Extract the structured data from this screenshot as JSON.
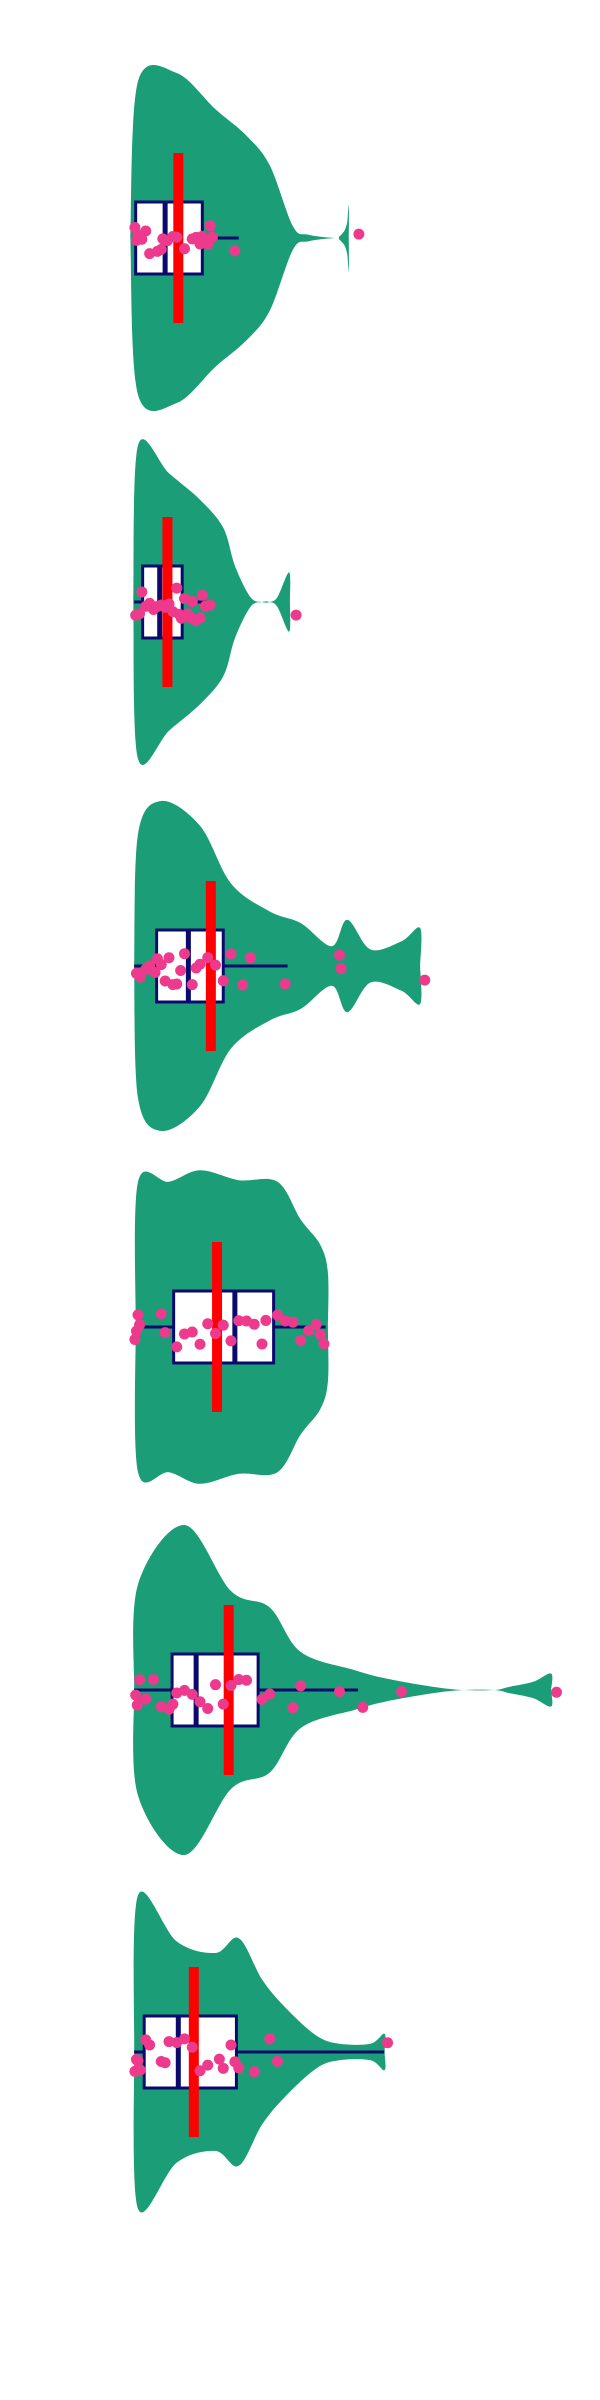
{
  "chart_data": {
    "type": "violin",
    "orientation": "horizontal",
    "title": "",
    "xlabel": "",
    "ylabel": "",
    "xlim": [
      0,
      72
    ],
    "grid": false,
    "colors": {
      "violin_fill": "#1b9e77",
      "box_stroke": "#0a0a6e",
      "box_fill": "#ffffff",
      "mean_bar": "#ff0000",
      "points": "#ee3a8c"
    },
    "series": [
      {
        "shape": [
          [
            -1,
            0
          ],
          [
            0,
            0.95
          ],
          [
            5,
            1
          ],
          [
            10,
            0.78
          ],
          [
            14,
            0.62
          ],
          [
            17,
            0.44
          ],
          [
            20,
            0.07
          ],
          [
            22,
            0.02
          ],
          [
            25.5,
            0
          ],
          [
            26,
            0.01
          ],
          [
            26.4,
            0.03
          ],
          [
            26.7,
            0.05
          ],
          [
            27,
            0.1
          ],
          [
            27.2,
            0.2
          ],
          [
            27.2,
            0
          ]
        ],
        "box": {
          "min": -0.5,
          "q1": -0.3,
          "median": 3.5,
          "q3": 8.3,
          "max": 13
        },
        "mean": 5.2,
        "points": [
          -0.4,
          -0.2,
          0,
          0.5,
          1,
          1.5,
          2.5,
          3,
          3.2,
          3.8,
          4.5,
          5,
          6,
          7,
          7.5,
          8,
          8.3,
          9,
          9.3,
          9.6,
          12.5,
          28.5
        ]
      },
      {
        "shape": [
          [
            -0.6,
            0
          ],
          [
            0,
            0.95
          ],
          [
            4,
            0.78
          ],
          [
            8,
            0.62
          ],
          [
            11,
            0.45
          ],
          [
            12.5,
            0.22
          ],
          [
            14.5,
            0.03
          ],
          [
            16,
            0
          ],
          [
            17,
            0
          ],
          [
            18,
            0.03
          ],
          [
            19.5,
            0.18
          ],
          [
            19.6,
            0
          ]
        ],
        "box": {
          "min": -0.5,
          "q1": 0.6,
          "median": 2.8,
          "q3": 5.7,
          "max": 9.3
        },
        "mean": 3.8,
        "points": [
          -0.3,
          -0.1,
          0.2,
          0.5,
          1,
          1.5,
          2,
          2.5,
          3,
          3.5,
          4,
          4.5,
          5,
          5.3,
          5.6,
          6,
          6.4,
          6.8,
          7,
          7.5,
          8,
          8.3,
          8.7,
          9.3,
          20.4
        ]
      },
      {
        "shape": [
          [
            -0.5,
            0
          ],
          [
            0,
            0.8
          ],
          [
            3,
            1
          ],
          [
            8,
            0.85
          ],
          [
            12,
            0.5
          ],
          [
            17,
            0.33
          ],
          [
            21,
            0.26
          ],
          [
            25,
            0.12
          ],
          [
            27,
            0.28
          ],
          [
            30,
            0.1
          ],
          [
            34,
            0.15
          ],
          [
            36.4,
            0.23
          ],
          [
            36.4,
            0
          ]
        ],
        "box": {
          "min": -0.5,
          "q1": 2.4,
          "median": 6.5,
          "q3": 11,
          "max": 19.3
        },
        "mean": 9.4,
        "points": [
          -0.2,
          0.3,
          1,
          1.5,
          2.2,
          2.5,
          3,
          3.5,
          4,
          4.5,
          5,
          5.5,
          6,
          7,
          7.5,
          8,
          9,
          10,
          11,
          12,
          13.5,
          14.5,
          19,
          26,
          26.2,
          37
        ]
      },
      {
        "shape": [
          [
            -0.3,
            0
          ],
          [
            0,
            0.88
          ],
          [
            4,
            0.88
          ],
          [
            8,
            0.95
          ],
          [
            13,
            0.89
          ],
          [
            18,
            0.88
          ],
          [
            21,
            0.65
          ],
          [
            23.5,
            0.5
          ],
          [
            24.5,
            0.33
          ],
          [
            24.5,
            0
          ]
        ],
        "box": {
          "min": -0.5,
          "q1": 4.6,
          "median": 12.5,
          "q3": 17.5,
          "max": 24.2
        },
        "mean": 10.2,
        "points": [
          -0.4,
          -0.2,
          0,
          0.2,
          3,
          3.5,
          5,
          6,
          7,
          8,
          9,
          10,
          11,
          12,
          13,
          14,
          15,
          16,
          16.5,
          18,
          19,
          20,
          21,
          22,
          23,
          23.5,
          24
        ]
      },
      {
        "shape": [
          [
            -0.5,
            0
          ],
          [
            0,
            0.64
          ],
          [
            6,
            1
          ],
          [
            12,
            0.6
          ],
          [
            17,
            0.5
          ],
          [
            21,
            0.23
          ],
          [
            28,
            0.12
          ],
          [
            32,
            0.07
          ],
          [
            38,
            0.02
          ],
          [
            42,
            0
          ],
          [
            46,
            0
          ],
          [
            48,
            0.02
          ],
          [
            51,
            0.05
          ],
          [
            53.3,
            0.1
          ],
          [
            53.3,
            0
          ]
        ],
        "box": {
          "min": -0.5,
          "q1": 4.4,
          "median": 7.5,
          "q3": 15.5,
          "max": 28.4
        },
        "mean": 11.7,
        "points": [
          -0.3,
          -0.1,
          0.2,
          1,
          2,
          3,
          4,
          4.5,
          5,
          6,
          7,
          8,
          9,
          10,
          11,
          12,
          13,
          14,
          16,
          17,
          20,
          21,
          26,
          29,
          34,
          54
        ]
      },
      {
        "shape": [
          [
            -0.5,
            0
          ],
          [
            0,
            0.95
          ],
          [
            5,
            0.67
          ],
          [
            10,
            0.6
          ],
          [
            13,
            0.69
          ],
          [
            16,
            0.44
          ],
          [
            19,
            0.27
          ],
          [
            23,
            0.1
          ],
          [
            26,
            0.05
          ],
          [
            30,
            0.05
          ],
          [
            31.8,
            0.11
          ],
          [
            31.8,
            0
          ]
        ],
        "box": {
          "min": -0.5,
          "q1": 0.8,
          "median": 5.2,
          "q3": 12.7,
          "max": 31.8
        },
        "mean": 7.2,
        "points": [
          -0.4,
          -0.2,
          0,
          0.3,
          1,
          1.5,
          3,
          3.5,
          4,
          5,
          6,
          7,
          8,
          9,
          10.5,
          11,
          12,
          12.5,
          13,
          15,
          17,
          18,
          32.2
        ]
      }
    ]
  }
}
